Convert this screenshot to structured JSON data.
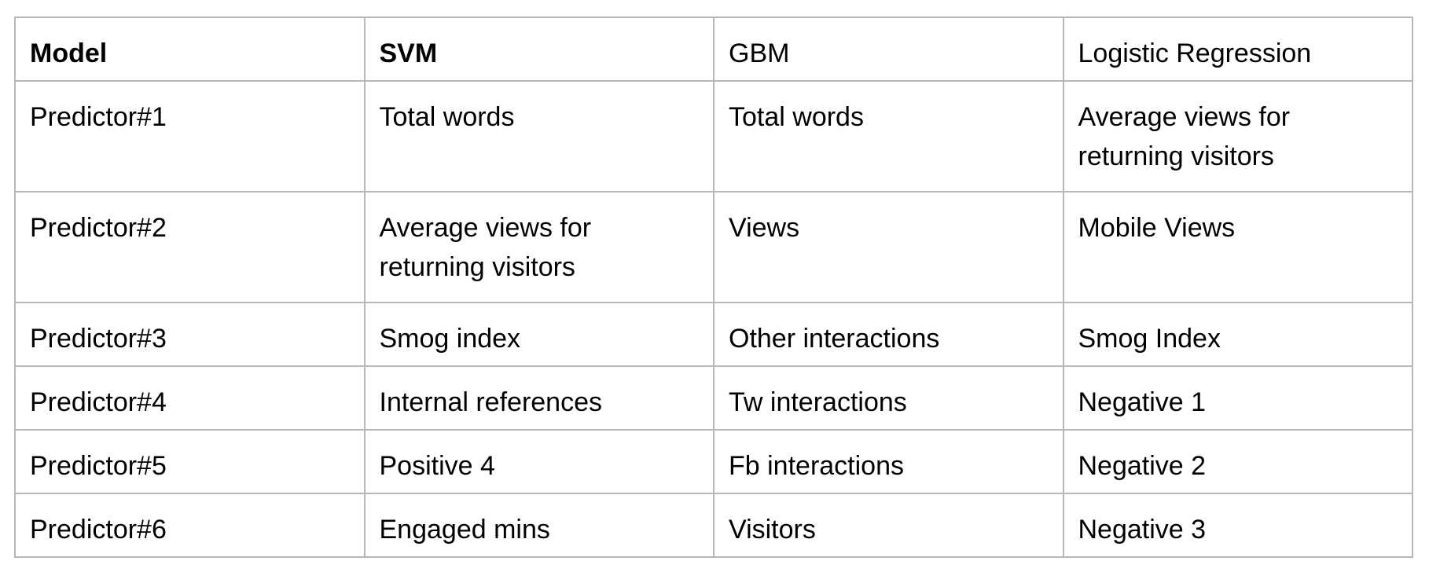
{
  "table": {
    "header": [
      "Model",
      "SVM",
      "GBM",
      "Logistic Regression"
    ],
    "rows": [
      [
        "Predictor#1",
        "Total words",
        "Total words",
        "Average views for returning visitors"
      ],
      [
        "Predictor#2",
        "Average views for returning visitors",
        "Views",
        "Mobile Views"
      ],
      [
        "Predictor#3",
        "Smog index",
        "Other interactions",
        "Smog Index"
      ],
      [
        "Predictor#4",
        "Internal references",
        "Tw interactions",
        "Negative 1"
      ],
      [
        "Predictor#5",
        "Positive 4",
        "Fb interactions",
        "Negative 2"
      ],
      [
        "Predictor#6",
        "Engaged mins",
        "Visitors",
        "Negative 3"
      ]
    ]
  }
}
